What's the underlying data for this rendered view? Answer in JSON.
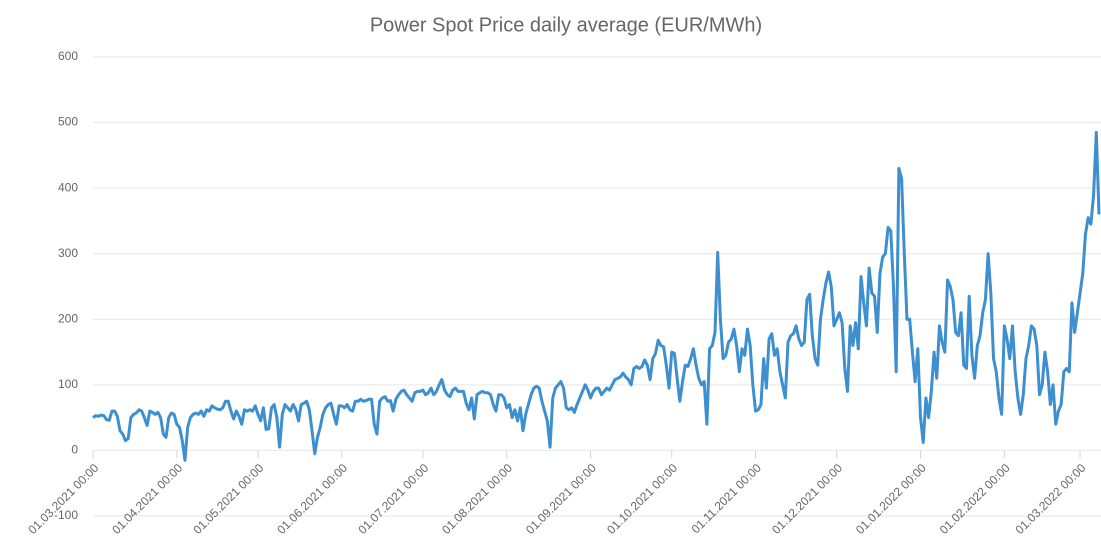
{
  "chart_data": {
    "type": "line",
    "title": "Power Spot Price daily average (EUR/MWh)",
    "color": "#3d8fcf",
    "grid": true,
    "xlim": [
      "2021-03-01",
      "2022-03-08"
    ],
    "xticks": [
      {
        "value": "2021-03-01",
        "label": "01.03.2021 00:00"
      },
      {
        "value": "2021-04-01",
        "label": "01.04.2021 00:00"
      },
      {
        "value": "2021-05-01",
        "label": "01.05.2021 00:00"
      },
      {
        "value": "2021-06-01",
        "label": "01.06.2021 00:00"
      },
      {
        "value": "2021-07-01",
        "label": "01.07.2021 00:00"
      },
      {
        "value": "2021-08-01",
        "label": "01.08.2021 00:00"
      },
      {
        "value": "2021-09-01",
        "label": "01.09.2021 00:00"
      },
      {
        "value": "2021-10-01",
        "label": "01.10.2021 00:00"
      },
      {
        "value": "2021-11-01",
        "label": "01.11.2021 00:00"
      },
      {
        "value": "2021-12-01",
        "label": "01.12.2021 00:00"
      },
      {
        "value": "2022-01-01",
        "label": "01.01.2022 00:00"
      },
      {
        "value": "2022-02-01",
        "label": "01.02.2022 00:00"
      },
      {
        "value": "2022-03-01",
        "label": "01.03.2022 00:00"
      }
    ],
    "ylim": [
      -100,
      600
    ],
    "yticks": [
      -100,
      0,
      100,
      200,
      300,
      400,
      500,
      600
    ],
    "x": [
      "2021-03-01",
      "2021-03-02",
      "2021-03-03",
      "2021-03-04",
      "2021-03-05",
      "2021-03-06",
      "2021-03-07",
      "2021-03-08",
      "2021-03-09",
      "2021-03-10",
      "2021-03-11",
      "2021-03-12",
      "2021-03-13",
      "2021-03-14",
      "2021-03-15",
      "2021-03-16",
      "2021-03-17",
      "2021-03-18",
      "2021-03-19",
      "2021-03-20",
      "2021-03-21",
      "2021-03-22",
      "2021-03-23",
      "2021-03-24",
      "2021-03-25",
      "2021-03-26",
      "2021-03-27",
      "2021-03-28",
      "2021-03-29",
      "2021-03-30",
      "2021-03-31",
      "2021-04-01",
      "2021-04-02",
      "2021-04-03",
      "2021-04-04",
      "2021-04-05",
      "2021-04-06",
      "2021-04-07",
      "2021-04-08",
      "2021-04-09",
      "2021-04-10",
      "2021-04-11",
      "2021-04-12",
      "2021-04-13",
      "2021-04-14",
      "2021-04-15",
      "2021-04-16",
      "2021-04-17",
      "2021-04-18",
      "2021-04-19",
      "2021-04-20",
      "2021-04-21",
      "2021-04-22",
      "2021-04-23",
      "2021-04-24",
      "2021-04-25",
      "2021-04-26",
      "2021-04-27",
      "2021-04-28",
      "2021-04-29",
      "2021-04-30",
      "2021-05-01",
      "2021-05-02",
      "2021-05-03",
      "2021-05-04",
      "2021-05-05",
      "2021-05-06",
      "2021-05-07",
      "2021-05-08",
      "2021-05-09",
      "2021-05-10",
      "2021-05-11",
      "2021-05-12",
      "2021-05-13",
      "2021-05-14",
      "2021-05-15",
      "2021-05-16",
      "2021-05-17",
      "2021-05-18",
      "2021-05-19",
      "2021-05-20",
      "2021-05-21",
      "2021-05-22",
      "2021-05-23",
      "2021-05-24",
      "2021-05-25",
      "2021-05-26",
      "2021-05-27",
      "2021-05-28",
      "2021-05-29",
      "2021-05-30",
      "2021-05-31",
      "2021-06-01",
      "2021-06-02",
      "2021-06-03",
      "2021-06-04",
      "2021-06-05",
      "2021-06-06",
      "2021-06-07",
      "2021-06-08",
      "2021-06-09",
      "2021-06-10",
      "2021-06-11",
      "2021-06-12",
      "2021-06-13",
      "2021-06-14",
      "2021-06-15",
      "2021-06-16",
      "2021-06-17",
      "2021-06-18",
      "2021-06-19",
      "2021-06-20",
      "2021-06-21",
      "2021-06-22",
      "2021-06-23",
      "2021-06-24",
      "2021-06-25",
      "2021-06-26",
      "2021-06-27",
      "2021-06-28",
      "2021-06-29",
      "2021-06-30",
      "2021-07-01",
      "2021-07-02",
      "2021-07-03",
      "2021-07-04",
      "2021-07-05",
      "2021-07-06",
      "2021-07-07",
      "2021-07-08",
      "2021-07-09",
      "2021-07-10",
      "2021-07-11",
      "2021-07-12",
      "2021-07-13",
      "2021-07-14",
      "2021-07-15",
      "2021-07-16",
      "2021-07-17",
      "2021-07-18",
      "2021-07-19",
      "2021-07-20",
      "2021-07-21",
      "2021-07-22",
      "2021-07-23",
      "2021-07-24",
      "2021-07-25",
      "2021-07-26",
      "2021-07-27",
      "2021-07-28",
      "2021-07-29",
      "2021-07-30",
      "2021-07-31",
      "2021-08-01",
      "2021-08-02",
      "2021-08-03",
      "2021-08-04",
      "2021-08-05",
      "2021-08-06",
      "2021-08-07",
      "2021-08-08",
      "2021-08-09",
      "2021-08-10",
      "2021-08-11",
      "2021-08-12",
      "2021-08-13",
      "2021-08-14",
      "2021-08-15",
      "2021-08-16",
      "2021-08-17",
      "2021-08-18",
      "2021-08-19",
      "2021-08-20",
      "2021-08-21",
      "2021-08-22",
      "2021-08-23",
      "2021-08-24",
      "2021-08-25",
      "2021-08-26",
      "2021-08-27",
      "2021-08-28",
      "2021-08-29",
      "2021-08-30",
      "2021-08-31",
      "2021-09-01",
      "2021-09-02",
      "2021-09-03",
      "2021-09-04",
      "2021-09-05",
      "2021-09-06",
      "2021-09-07",
      "2021-09-08",
      "2021-09-09",
      "2021-09-10",
      "2021-09-11",
      "2021-09-12",
      "2021-09-13",
      "2021-09-14",
      "2021-09-15",
      "2021-09-16",
      "2021-09-17",
      "2021-09-18",
      "2021-09-19",
      "2021-09-20",
      "2021-09-21",
      "2021-09-22",
      "2021-09-23",
      "2021-09-24",
      "2021-09-25",
      "2021-09-26",
      "2021-09-27",
      "2021-09-28",
      "2021-09-29",
      "2021-09-30",
      "2021-10-01",
      "2021-10-02",
      "2021-10-03",
      "2021-10-04",
      "2021-10-05",
      "2021-10-06",
      "2021-10-07",
      "2021-10-08",
      "2021-10-09",
      "2021-10-10",
      "2021-10-11",
      "2021-10-12",
      "2021-10-13",
      "2021-10-14",
      "2021-10-15",
      "2021-10-16",
      "2021-10-17",
      "2021-10-18",
      "2021-10-19",
      "2021-10-20",
      "2021-10-21",
      "2021-10-22",
      "2021-10-23",
      "2021-10-24",
      "2021-10-25",
      "2021-10-26",
      "2021-10-27",
      "2021-10-28",
      "2021-10-29",
      "2021-10-30",
      "2021-10-31",
      "2021-11-01",
      "2021-11-02",
      "2021-11-03",
      "2021-11-04",
      "2021-11-05",
      "2021-11-06",
      "2021-11-07",
      "2021-11-08",
      "2021-11-09",
      "2021-11-10",
      "2021-11-11",
      "2021-11-12",
      "2021-11-13",
      "2021-11-14",
      "2021-11-15",
      "2021-11-16",
      "2021-11-17",
      "2021-11-18",
      "2021-11-19",
      "2021-11-20",
      "2021-11-21",
      "2021-11-22",
      "2021-11-23",
      "2021-11-24",
      "2021-11-25",
      "2021-11-26",
      "2021-11-27",
      "2021-11-28",
      "2021-11-29",
      "2021-11-30",
      "2021-12-01",
      "2021-12-02",
      "2021-12-03",
      "2021-12-04",
      "2021-12-05",
      "2021-12-06",
      "2021-12-07",
      "2021-12-08",
      "2021-12-09",
      "2021-12-10",
      "2021-12-11",
      "2021-12-12",
      "2021-12-13",
      "2021-12-14",
      "2021-12-15",
      "2021-12-16",
      "2021-12-17",
      "2021-12-18",
      "2021-12-19",
      "2021-12-20",
      "2021-12-21",
      "2021-12-22",
      "2021-12-23",
      "2021-12-24",
      "2021-12-25",
      "2021-12-26",
      "2021-12-27",
      "2021-12-28",
      "2021-12-29",
      "2021-12-30",
      "2021-12-31",
      "2022-01-01",
      "2022-01-02",
      "2022-01-03",
      "2022-01-04",
      "2022-01-05",
      "2022-01-06",
      "2022-01-07",
      "2022-01-08",
      "2022-01-09",
      "2022-01-10",
      "2022-01-11",
      "2022-01-12",
      "2022-01-13",
      "2022-01-14",
      "2022-01-15",
      "2022-01-16",
      "2022-01-17",
      "2022-01-18",
      "2022-01-19",
      "2022-01-20",
      "2022-01-21",
      "2022-01-22",
      "2022-01-23",
      "2022-01-24",
      "2022-01-25",
      "2022-01-26",
      "2022-01-27",
      "2022-01-28",
      "2022-01-29",
      "2022-01-30",
      "2022-01-31",
      "2022-02-01",
      "2022-02-02",
      "2022-02-03",
      "2022-02-04",
      "2022-02-05",
      "2022-02-06",
      "2022-02-07",
      "2022-02-08",
      "2022-02-09",
      "2022-02-10",
      "2022-02-11",
      "2022-02-12",
      "2022-02-13",
      "2022-02-14",
      "2022-02-15",
      "2022-02-16",
      "2022-02-17",
      "2022-02-18",
      "2022-02-19",
      "2022-02-20",
      "2022-02-21",
      "2022-02-22",
      "2022-02-23",
      "2022-02-24",
      "2022-02-25",
      "2022-02-26",
      "2022-02-27",
      "2022-02-28",
      "2022-03-01",
      "2022-03-02",
      "2022-03-03",
      "2022-03-04",
      "2022-03-05",
      "2022-03-06",
      "2022-03-07",
      "2022-03-08"
    ],
    "values": [
      50,
      53,
      52,
      54,
      53,
      47,
      46,
      60,
      60,
      52,
      30,
      25,
      15,
      18,
      50,
      55,
      57,
      62,
      60,
      50,
      38,
      60,
      58,
      55,
      58,
      50,
      25,
      20,
      50,
      57,
      55,
      40,
      35,
      15,
      -15,
      35,
      50,
      55,
      57,
      55,
      60,
      52,
      62,
      60,
      68,
      65,
      63,
      62,
      65,
      75,
      75,
      60,
      48,
      60,
      52,
      40,
      62,
      60,
      62,
      60,
      68,
      55,
      45,
      65,
      32,
      33,
      65,
      70,
      50,
      5,
      55,
      70,
      65,
      60,
      70,
      62,
      45,
      70,
      72,
      75,
      62,
      30,
      -5,
      20,
      35,
      55,
      65,
      70,
      72,
      55,
      40,
      68,
      68,
      65,
      70,
      62,
      60,
      75,
      75,
      78,
      75,
      76,
      78,
      78,
      40,
      25,
      75,
      80,
      82,
      75,
      76,
      60,
      78,
      85,
      90,
      92,
      85,
      80,
      75,
      88,
      90,
      90,
      92,
      85,
      88,
      95,
      85,
      90,
      100,
      108,
      92,
      85,
      82,
      92,
      95,
      90,
      90,
      90,
      72,
      62,
      80,
      48,
      85,
      88,
      90,
      88,
      88,
      85,
      70,
      60,
      85,
      85,
      80,
      65,
      70,
      50,
      62,
      45,
      65,
      30,
      55,
      70,
      85,
      95,
      98,
      95,
      75,
      60,
      45,
      5,
      80,
      95,
      100,
      105,
      95,
      65,
      62,
      65,
      58,
      70,
      80,
      90,
      100,
      92,
      80,
      90,
      95,
      95,
      85,
      90,
      95,
      92,
      100,
      108,
      110,
      112,
      118,
      112,
      108,
      100,
      125,
      128,
      125,
      128,
      138,
      130,
      108,
      140,
      148,
      168,
      160,
      158,
      130,
      95,
      150,
      148,
      110,
      75,
      105,
      130,
      128,
      140,
      155,
      130,
      110,
      100,
      105,
      40,
      155,
      160,
      180,
      302,
      200,
      140,
      145,
      165,
      170,
      185,
      160,
      120,
      155,
      145,
      185,
      160,
      100,
      60,
      62,
      70,
      140,
      95,
      170,
      178,
      145,
      155,
      120,
      100,
      80,
      165,
      175,
      178,
      190,
      170,
      160,
      165,
      230,
      238,
      175,
      140,
      130,
      200,
      230,
      255,
      272,
      250,
      190,
      200,
      210,
      195,
      125,
      90,
      190,
      160,
      195,
      155,
      265,
      225,
      190,
      278,
      240,
      235,
      180,
      270,
      295,
      300,
      340,
      335,
      250,
      120,
      430,
      415,
      300,
      200,
      200,
      150,
      105,
      155,
      50,
      12,
      80,
      50,
      90,
      150,
      110,
      190,
      165,
      150,
      260,
      250,
      230,
      180,
      175,
      210,
      130,
      125,
      235,
      145,
      110,
      160,
      175,
      210,
      230,
      300,
      240,
      140,
      120,
      80,
      55,
      190,
      170,
      140,
      190,
      120,
      80,
      55,
      85,
      140,
      160,
      190,
      185,
      160,
      85,
      100,
      150,
      120,
      70,
      100,
      40,
      60,
      70,
      120,
      125,
      120,
      225,
      180,
      210,
      240,
      270,
      330,
      355,
      345,
      390,
      485,
      360
    ]
  }
}
